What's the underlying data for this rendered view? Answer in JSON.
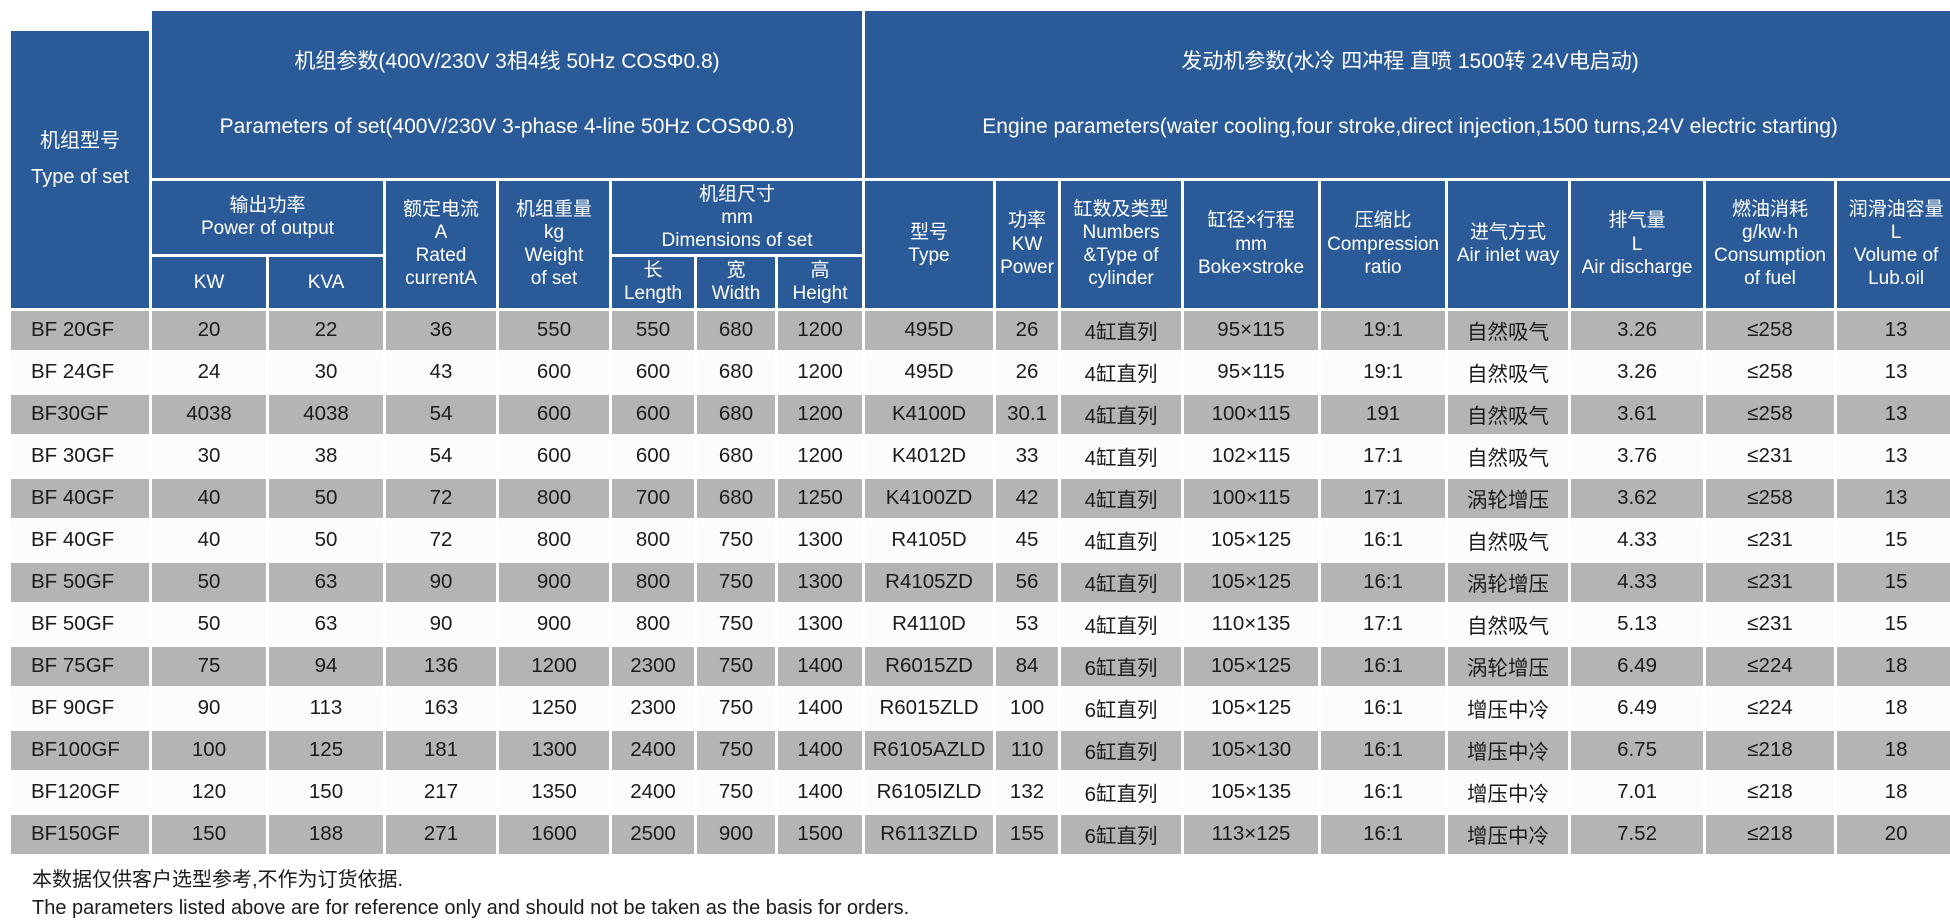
{
  "colors": {
    "header_blue": "#2b5a98",
    "row_gray": "#b4b4b4",
    "row_white": "#fcfcfc",
    "text_dark": "#1b1b1b"
  },
  "table": {
    "corner_label": "机组型号\nType of set",
    "groups": {
      "set": {
        "zh": "机组参数(400V/230V 3相4线 50Hz COSΦ0.8)",
        "en": "Parameters of set(400V/230V 3-phase 4-line 50Hz COSΦ0.8)"
      },
      "engine": {
        "zh": "发动机参数(水冷 四冲程 直喷 1500转 24V电启动)",
        "en": "Engine parameters(water cooling,four stroke,direct injection,1500 turns,24V electric starting)"
      }
    },
    "headers": {
      "power_output": "输出功率\nPower of output",
      "kw": "KW",
      "kva": "KVA",
      "rated_current": "额定电流\nA\nRated\ncurrentA",
      "weight": "机组重量\nkg\nWeight\nof set",
      "dimensions": "机组尺寸\nmm\nDimensions of set",
      "length": "长\nLength",
      "width": "宽\nWidth",
      "height": "高\nHeight",
      "engine_type": "型号\nType",
      "engine_power": "功率\nKW\nPower",
      "cylinders": "缸数及类型\nNumbers\n&Type of\ncylinder",
      "bore_stroke": "缸径×行程\nmm\nBoke×stroke",
      "compression": "压缩比\nCompression\nratio",
      "air_inlet": "进气方式\nAir inlet way",
      "air_discharge": "排气量\nL\nAir discharge",
      "fuel_consumption": "燃油消耗\ng/kw·h\nConsumption\nof fuel",
      "lub_oil": "润滑油容量\nL\nVolume of\nLub.oil"
    },
    "column_keys": [
      "model",
      "kw",
      "kva",
      "rated-current",
      "weight",
      "length",
      "width",
      "height",
      "engine-type",
      "engine-power",
      "cylinders",
      "bore-stroke",
      "compression-ratio",
      "air-inlet",
      "air-discharge",
      "fuel-consumption",
      "lub-oil-volume"
    ],
    "rows": [
      [
        "BF 20GF",
        "20",
        "22",
        "36",
        "550",
        "550",
        "680",
        "1200",
        "495D",
        "26",
        "4缸直列",
        "95×115",
        "19:1",
        "自然吸气",
        "3.26",
        "≤258",
        "13"
      ],
      [
        "BF 24GF",
        "24",
        "30",
        "43",
        "600",
        "600",
        "680",
        "1200",
        "495D",
        "26",
        "4缸直列",
        "95×115",
        "19:1",
        "自然吸气",
        "3.26",
        "≤258",
        "13"
      ],
      [
        "BF30GF",
        "4038",
        "4038",
        "54",
        "600",
        "600",
        "680",
        "1200",
        "K4100D",
        "30.1",
        "4缸直列",
        "100×115",
        "191",
        "自然吸气",
        "3.61",
        "≤258",
        "13"
      ],
      [
        "BF 30GF",
        "30",
        "38",
        "54",
        "600",
        "600",
        "680",
        "1200",
        "K4012D",
        "33",
        "4缸直列",
        "102×115",
        "17:1",
        "自然吸气",
        "3.76",
        "≤231",
        "13"
      ],
      [
        "BF 40GF",
        "40",
        "50",
        "72",
        "800",
        "700",
        "680",
        "1250",
        "K4100ZD",
        "42",
        "4缸直列",
        "100×115",
        "17:1",
        "涡轮增压",
        "3.62",
        "≤258",
        "13"
      ],
      [
        "BF 40GF",
        "40",
        "50",
        "72",
        "800",
        "800",
        "750",
        "1300",
        "R4105D",
        "45",
        "4缸直列",
        "105×125",
        "16:1",
        "自然吸气",
        "4.33",
        "≤231",
        "15"
      ],
      [
        "BF 50GF",
        "50",
        "63",
        "90",
        "900",
        "800",
        "750",
        "1300",
        "R4105ZD",
        "56",
        "4缸直列",
        "105×125",
        "16:1",
        "涡轮增压",
        "4.33",
        "≤231",
        "15"
      ],
      [
        "BF 50GF",
        "50",
        "63",
        "90",
        "900",
        "800",
        "750",
        "1300",
        "R4110D",
        "53",
        "4缸直列",
        "110×135",
        "17:1",
        "自然吸气",
        "5.13",
        "≤231",
        "15"
      ],
      [
        "BF 75GF",
        "75",
        "94",
        "136",
        "1200",
        "2300",
        "750",
        "1400",
        "R6015ZD",
        "84",
        "6缸直列",
        "105×125",
        "16:1",
        "涡轮增压",
        "6.49",
        "≤224",
        "18"
      ],
      [
        "BF 90GF",
        "90",
        "113",
        "163",
        "1250",
        "2300",
        "750",
        "1400",
        "R6015ZLD",
        "100",
        "6缸直列",
        "105×125",
        "16:1",
        "增压中冷",
        "6.49",
        "≤224",
        "18"
      ],
      [
        "BF100GF",
        "100",
        "125",
        "181",
        "1300",
        "2400",
        "750",
        "1400",
        "R6105AZLD",
        "110",
        "6缸直列",
        "105×130",
        "16:1",
        "增压中冷",
        "6.75",
        "≤218",
        "18"
      ],
      [
        "BF120GF",
        "120",
        "150",
        "217",
        "1350",
        "2400",
        "750",
        "1400",
        "R6105IZLD",
        "132",
        "6缸直列",
        "105×135",
        "16:1",
        "增压中冷",
        "7.01",
        "≤218",
        "18"
      ],
      [
        "BF150GF",
        "150",
        "188",
        "271",
        "1600",
        "2500",
        "900",
        "1500",
        "R6113ZLD",
        "155",
        "6缸直列",
        "113×125",
        "16:1",
        "增压中冷",
        "7.52",
        "≤218",
        "20"
      ]
    ]
  },
  "footnote": {
    "zh": "本数据仅供客户选型参考,不作为订货依据.",
    "en": "The parameters listed above are for reference only and should not be taken as the basis for orders."
  }
}
